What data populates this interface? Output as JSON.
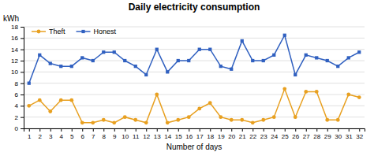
{
  "chart_data": {
    "type": "line",
    "title": "Daily electricity consumption",
    "xlabel": "Number of days",
    "ylabel": "kWh",
    "x": [
      1,
      2,
      3,
      4,
      5,
      6,
      7,
      8,
      9,
      10,
      11,
      12,
      13,
      14,
      15,
      16,
      17,
      18,
      19,
      20,
      21,
      22,
      23,
      24,
      25,
      26,
      27,
      28,
      29,
      30,
      31,
      32
    ],
    "series": [
      {
        "name": "Theft",
        "color": "#E8A020",
        "marker": "circle",
        "line_style": "solid",
        "values": [
          4.0,
          5.0,
          3.0,
          5.0,
          5.0,
          1.0,
          1.0,
          1.5,
          1.0,
          2.0,
          1.5,
          1.0,
          6.0,
          1.0,
          1.5,
          2.0,
          3.5,
          4.5,
          2.0,
          1.5,
          1.5,
          1.0,
          1.5,
          2.0,
          7.0,
          2.0,
          6.5,
          6.5,
          1.5,
          1.5,
          6.0,
          5.5
        ]
      },
      {
        "name": "Honest",
        "color": "#3060C0",
        "marker": "square",
        "line_style": "solid",
        "values": [
          8.0,
          13.0,
          11.5,
          11.0,
          11.0,
          12.5,
          12.0,
          13.5,
          13.5,
          12.0,
          11.0,
          9.5,
          14.0,
          10.0,
          12.0,
          12.0,
          14.0,
          14.0,
          11.0,
          10.5,
          15.5,
          12.0,
          12.0,
          13.0,
          16.5,
          9.5,
          13.0,
          12.5,
          12.0,
          11.0,
          12.5,
          13.5
        ]
      }
    ],
    "xlim": [
      0.5,
      32.5
    ],
    "xticks": [
      1,
      2,
      3,
      4,
      5,
      6,
      7,
      8,
      9,
      10,
      11,
      12,
      13,
      14,
      15,
      16,
      17,
      18,
      19,
      20,
      21,
      22,
      23,
      24,
      25,
      26,
      27,
      28,
      29,
      30,
      31,
      32
    ],
    "ylim": [
      0,
      18
    ],
    "yticks": [
      0,
      2,
      4,
      6,
      8,
      10,
      12,
      14,
      16,
      18
    ],
    "grid": true,
    "legend": "upper left"
  }
}
